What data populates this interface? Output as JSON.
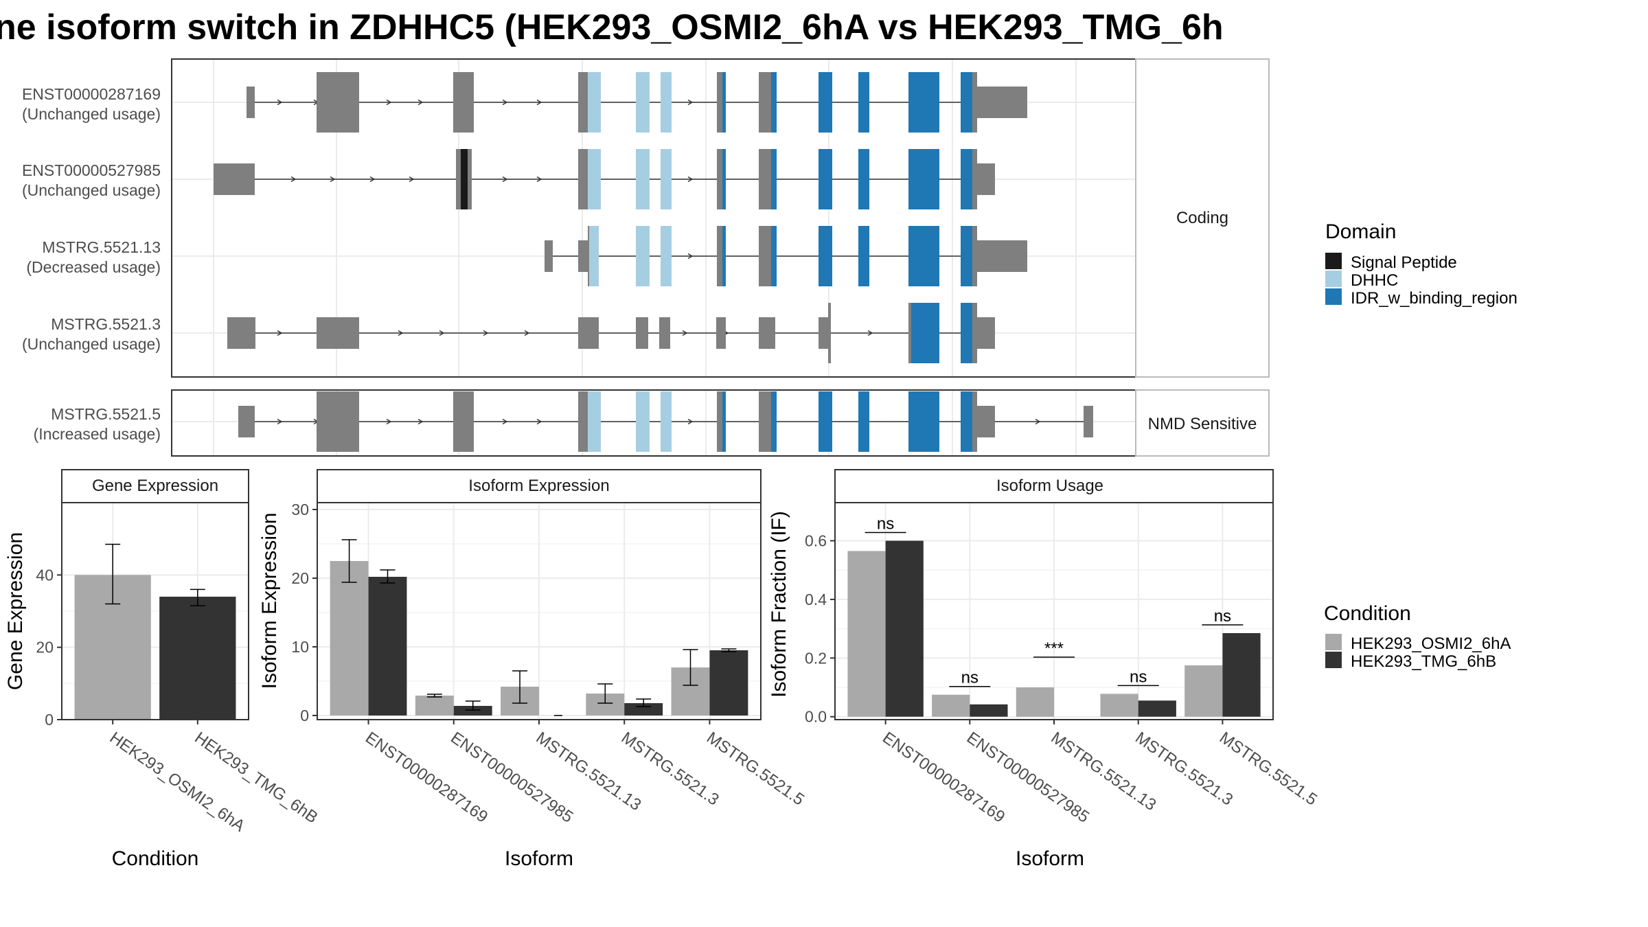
{
  "title": "ne isoform switch in ZDHHC5 (HEK293_OSMI2_6hA vs HEK293_TMG_6h",
  "structure": {
    "groups": [
      {
        "label": "Coding",
        "rows": [
          {
            "name": "ENST00000287169",
            "usage": "(Unchanged usage)"
          },
          {
            "name": "ENST00000527985",
            "usage": "(Unchanged usage)"
          },
          {
            "name": "MSTRG.5521.13",
            "usage": "(Decreased usage)"
          },
          {
            "name": "MSTRG.5521.3",
            "usage": "(Unchanged usage)"
          }
        ]
      },
      {
        "label": "NMD Sensitive",
        "rows": [
          {
            "name": "MSTRG.5521.5",
            "usage": "(Increased usage)"
          }
        ]
      }
    ]
  },
  "legends": {
    "domain": {
      "title": "Domain",
      "items": [
        {
          "label": "Signal Peptide",
          "color": "#1a1a1a"
        },
        {
          "label": "DHHC",
          "color": "#a6cee3"
        },
        {
          "label": "IDR_w_binding_region",
          "color": "#1f78b4"
        }
      ]
    },
    "condition": {
      "title": "Condition",
      "items": [
        {
          "label": "HEK293_OSMI2_6hA",
          "color": "#a9a9a9"
        },
        {
          "label": "HEK293_TMG_6hB",
          "color": "#333333"
        }
      ]
    }
  },
  "chart_data": [
    {
      "type": "bar",
      "title": "Gene Expression",
      "xlabel": "Condition",
      "ylabel": "Gene Expression",
      "categories": [
        "HEK293_OSMI2_6hA",
        "HEK293_TMG_6hB"
      ],
      "values": [
        40,
        34
      ],
      "error_low": [
        32,
        31.5
      ],
      "error_high": [
        48.5,
        36
      ],
      "yticks": [
        0,
        20,
        40
      ],
      "ylim": [
        0,
        60
      ]
    },
    {
      "type": "bar",
      "title": "Isoform Expression",
      "xlabel": "Isoform",
      "ylabel": "Isoform Expression",
      "categories": [
        "ENST00000287169",
        "ENST00000527985",
        "MSTRG.5521.13",
        "MSTRG.5521.3",
        "MSTRG.5521.5"
      ],
      "series": [
        {
          "name": "HEK293_OSMI2_6hA",
          "values": [
            22.5,
            2.9,
            4.2,
            3.2,
            7.0
          ],
          "error_low": [
            19.4,
            2.7,
            1.8,
            1.8,
            4.4
          ],
          "error_high": [
            25.6,
            3.1,
            6.5,
            4.6,
            9.6
          ]
        },
        {
          "name": "HEK293_TMG_6hB",
          "values": [
            20.2,
            1.4,
            0,
            1.8,
            9.5
          ],
          "error_low": [
            19.3,
            0.8,
            0,
            1.3,
            9.3
          ],
          "error_high": [
            21.2,
            2.1,
            0,
            2.4,
            9.7
          ]
        }
      ],
      "yticks": [
        0,
        10,
        20,
        30
      ],
      "ylim": [
        -0.6,
        31
      ]
    },
    {
      "type": "bar",
      "title": "Isoform Usage",
      "xlabel": "Isoform",
      "ylabel": "Isoform Fraction (IF)",
      "categories": [
        "ENST00000287169",
        "ENST00000527985",
        "MSTRG.5521.13",
        "MSTRG.5521.3",
        "MSTRG.5521.5"
      ],
      "series": [
        {
          "name": "HEK293_OSMI2_6hA",
          "values": [
            0.565,
            0.075,
            0.1,
            0.078,
            0.175
          ]
        },
        {
          "name": "HEK293_TMG_6hB",
          "values": [
            0.6,
            0.042,
            0,
            0.055,
            0.285
          ]
        }
      ],
      "significance": [
        "ns",
        "ns",
        "***",
        "ns",
        "ns"
      ],
      "yticks": [
        0.0,
        0.2,
        0.4,
        0.6
      ],
      "yticklabels": [
        "0.0",
        "0.2",
        "0.4",
        "0.6"
      ],
      "ylim": [
        -0.01,
        0.73
      ]
    }
  ]
}
